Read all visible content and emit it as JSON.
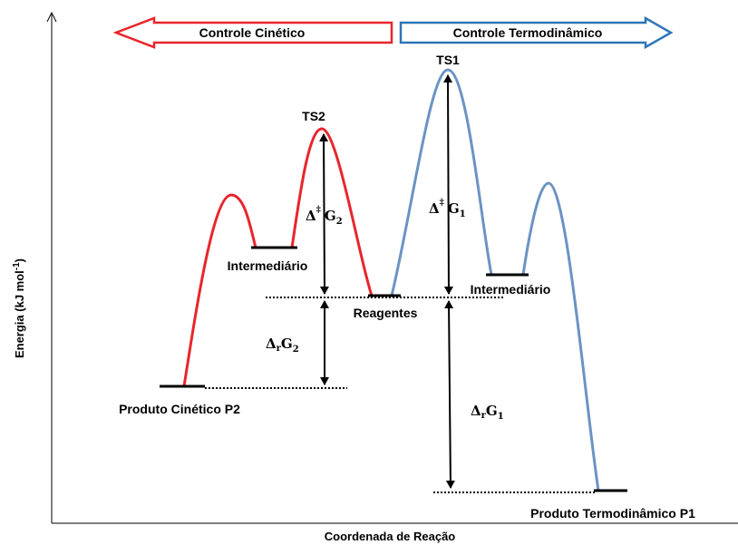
{
  "banner": {
    "kinetic": "Controle Cinético",
    "thermodynamic": "Controle Termodinâmico"
  },
  "states": {
    "ts1": "TS1",
    "ts2": "TS2",
    "intermediate_left": "Intermediário",
    "intermediate_right": "Intermediário",
    "reactants": "Reagentes",
    "kinetic_product": "Produto Cinético P2",
    "thermo_product": "Produto Termodinâmico P1"
  },
  "labels": {
    "activation_2": {
      "symbol": "Δ",
      "sup": "‡",
      "main": "G",
      "sub": "2"
    },
    "activation_1": {
      "symbol": "Δ",
      "sup": "‡",
      "main": "G",
      "sub": "1"
    },
    "reaction_2": {
      "symbol": "Δ",
      "low": "r",
      "main": "G",
      "sub": "2"
    },
    "reaction_1": {
      "symbol": "Δ",
      "low": "r",
      "main": "G",
      "sub": "1"
    }
  },
  "axes": {
    "y": {
      "text": "Energia (kJ mol",
      "sup": "-1",
      "close": ")"
    },
    "x": "Coordenada de Reação"
  }
}
